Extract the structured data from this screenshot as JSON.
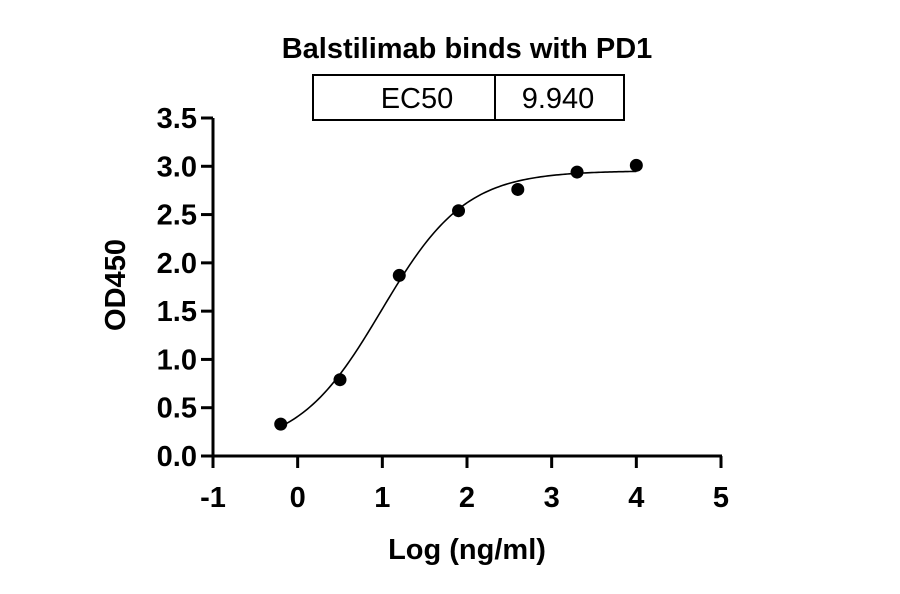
{
  "chart_data": {
    "type": "scatter",
    "title": "Balstilimab binds with PD1",
    "xlabel": "Log (ng/ml)",
    "ylabel": "OD450",
    "xlim": [
      -1,
      5
    ],
    "ylim": [
      0,
      3.5
    ],
    "x_ticks": [
      "-1",
      "0",
      "1",
      "2",
      "3",
      "4",
      "5"
    ],
    "y_ticks": [
      "0.0",
      "0.5",
      "1.0",
      "1.5",
      "2.0",
      "2.5",
      "3.0",
      "3.5"
    ],
    "series": [
      {
        "points": [
          {
            "x": -0.2,
            "y": 0.33
          },
          {
            "x": 0.5,
            "y": 0.79
          },
          {
            "x": 1.2,
            "y": 1.87
          },
          {
            "x": 1.9,
            "y": 2.54
          },
          {
            "x": 2.6,
            "y": 2.76
          },
          {
            "x": 3.3,
            "y": 2.94
          },
          {
            "x": 4.0,
            "y": 3.01
          }
        ],
        "fit": "four-parameter logistic",
        "fit_range": [
          -0.2,
          4.0
        ]
      }
    ],
    "results_table": {
      "label": "EC50",
      "value": "9.940"
    },
    "grid": false,
    "legend": "none",
    "colors": {
      "points": "#000000",
      "curve": "#000000",
      "axes": "#000000"
    }
  }
}
